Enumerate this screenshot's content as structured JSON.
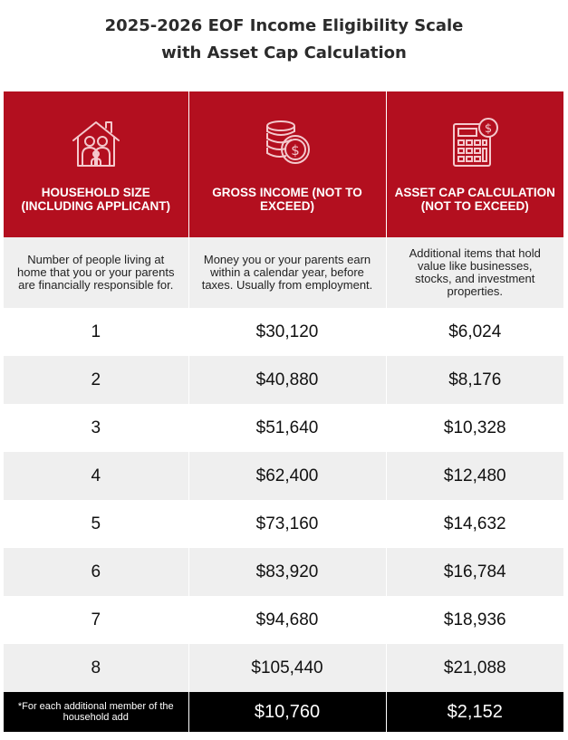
{
  "title": {
    "line1": "2025-2026 EOF Income Eligibility Scale",
    "line2": "with Asset Cap Calculation"
  },
  "colors": {
    "header_red": "#b30f1f",
    "row_gray": "#efefef",
    "footer": "#000000"
  },
  "columns": [
    {
      "label": "HOUSEHOLD SIZE (INCLUDING APPLICANT)",
      "icon": "family-house-icon",
      "description": "Number of people living at home that you or your parents are financially responsible for."
    },
    {
      "label": "GROSS INCOME (NOT TO EXCEED)",
      "icon": "coins-dollar-icon",
      "description": "Money you or your parents earn within a calendar year, before taxes. Usually from employment."
    },
    {
      "label": "ASSET CAP CALCULATION (NOT TO EXCEED)",
      "icon": "calculator-dollar-icon",
      "description": "Additional items that hold value like businesses, stocks, and investment properties."
    }
  ],
  "rows": [
    {
      "size": "1",
      "income": "$30,120",
      "asset": "$6,024"
    },
    {
      "size": "2",
      "income": "$40,880",
      "asset": "$8,176"
    },
    {
      "size": "3",
      "income": "$51,640",
      "asset": "$10,328"
    },
    {
      "size": "4",
      "income": "$62,400",
      "asset": "$12,480"
    },
    {
      "size": "5",
      "income": "$73,160",
      "asset": "$14,632"
    },
    {
      "size": "6",
      "income": "$83,920",
      "asset": "$16,784"
    },
    {
      "size": "7",
      "income": "$94,680",
      "asset": "$18,936"
    },
    {
      "size": "8",
      "income": "$105,440",
      "asset": "$21,088"
    }
  ],
  "footer": {
    "note": "*For each additional member of the household add",
    "income": "$10,760",
    "asset": "$2,152"
  }
}
